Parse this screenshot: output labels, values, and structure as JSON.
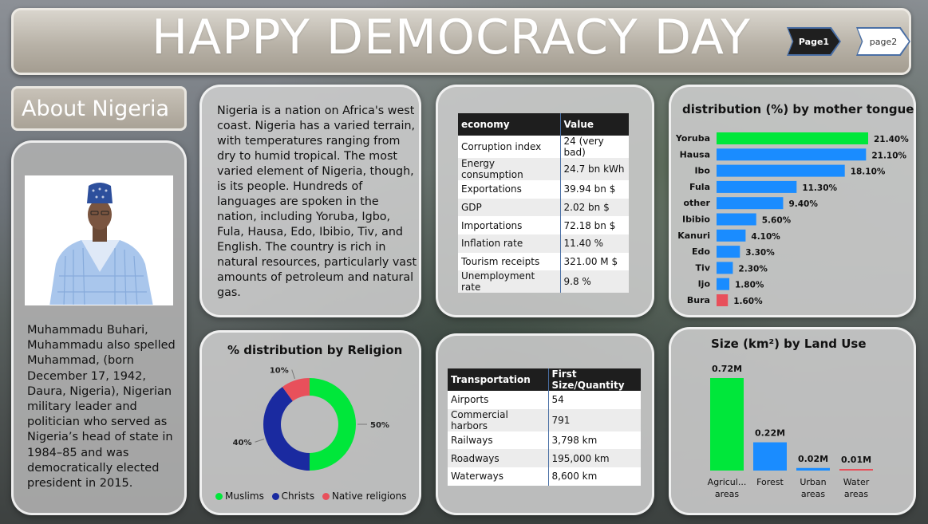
{
  "header": {
    "title": "HAPPY DEMOCRACY DAY",
    "nav": [
      {
        "label": "Page1",
        "active": true
      },
      {
        "label": "page2",
        "active": false
      }
    ]
  },
  "about": {
    "heading": "About Nigeria",
    "bio": "Muhammadu Buhari, Muhammadu also spelled Muhammad, (born December 17, 1942, Daura, Nigeria), Nigerian military leader and politician who served as Nigeria’s head of state in 1984–85 and was democratically elected president in 2015.",
    "intro": "Nigeria is a nation on Africa's west coast. Nigeria has a varied terrain, with temperatures ranging from dry to humid tropical. The most varied element of Nigeria, though, is its people. Hundreds of languages are spoken in the nation, including Yoruba, Igbo, Fula, Hausa, Edo, Ibibio, Tiv, and English. The country is rich in natural resources, particularly vast amounts of petroleum and natural gas."
  },
  "economy_table": {
    "headers": [
      "economy",
      "Value"
    ],
    "rows": [
      [
        "Corruption index",
        "24 (very bad)"
      ],
      [
        "Energy consumption",
        "24.7 bn kWh"
      ],
      [
        "Exportations",
        "39.94 bn $"
      ],
      [
        "GDP",
        "2.02 bn $"
      ],
      [
        "Importations",
        "72.18 bn $"
      ],
      [
        "Inflation rate",
        "11.40 %"
      ],
      [
        "Tourism receipts",
        "321.00 M $"
      ],
      [
        "Unemployment rate",
        "9.8 %"
      ]
    ]
  },
  "transport_table": {
    "headers": [
      "Transportation",
      "First Size/Quantity"
    ],
    "rows": [
      [
        "Airports",
        "54"
      ],
      [
        "Commercial harbors",
        "791"
      ],
      [
        "Railways",
        "3,798 km"
      ],
      [
        "Roadways",
        "195,000 km"
      ],
      [
        "Waterways",
        "8,600 km"
      ]
    ]
  },
  "colors": {
    "green": "#00e73a",
    "blue": "#1a8cff",
    "navy": "#1a2aa0",
    "red": "#e8505b"
  },
  "chart_data": [
    {
      "type": "pie",
      "title": "% distribution by Religion",
      "categories": [
        "Muslims",
        "Christs",
        "Native religions"
      ],
      "values": [
        50,
        40,
        10
      ],
      "labels": [
        "50%",
        "40%",
        "10%"
      ],
      "colors": [
        "#00e73a",
        "#1a2aa0",
        "#e8505b"
      ],
      "donut": true,
      "legend": "bottom"
    },
    {
      "type": "bar",
      "orientation": "horizontal",
      "title": "distribution (%) by mother tongue",
      "categories": [
        "Yoruba",
        "Hausa",
        "Ibo",
        "Fula",
        "other",
        "Ibibio",
        "Kanuri",
        "Edo",
        "Tiv",
        "Ijo",
        "Bura"
      ],
      "values": [
        21.4,
        21.1,
        18.1,
        11.3,
        9.4,
        5.6,
        4.1,
        3.3,
        2.3,
        1.8,
        1.6
      ],
      "labels": [
        "21.40%",
        "21.10%",
        "18.10%",
        "11.30%",
        "9.40%",
        "5.60%",
        "4.10%",
        "3.30%",
        "2.30%",
        "1.80%",
        "1.60%"
      ],
      "highlight_max": "#00e73a",
      "highlight_min": "#e8505b",
      "bar_color": "#1a8cff"
    },
    {
      "type": "bar",
      "title": "Size (km²) by Land Use",
      "categories": [
        "Agricul... areas",
        "Forest",
        "Urban areas",
        "Water areas"
      ],
      "tick_labels": [
        [
          "Agricul...",
          "areas"
        ],
        [
          "Forest"
        ],
        [
          "Urban",
          "areas"
        ],
        [
          "Water",
          "areas"
        ]
      ],
      "values": [
        0.72,
        0.22,
        0.02,
        0.01
      ],
      "labels": [
        "0.72M",
        "0.22M",
        "0.02M",
        "0.01M"
      ],
      "colors": [
        "#00e73a",
        "#1a8cff",
        "#1a8cff",
        "#e8505b"
      ]
    }
  ]
}
